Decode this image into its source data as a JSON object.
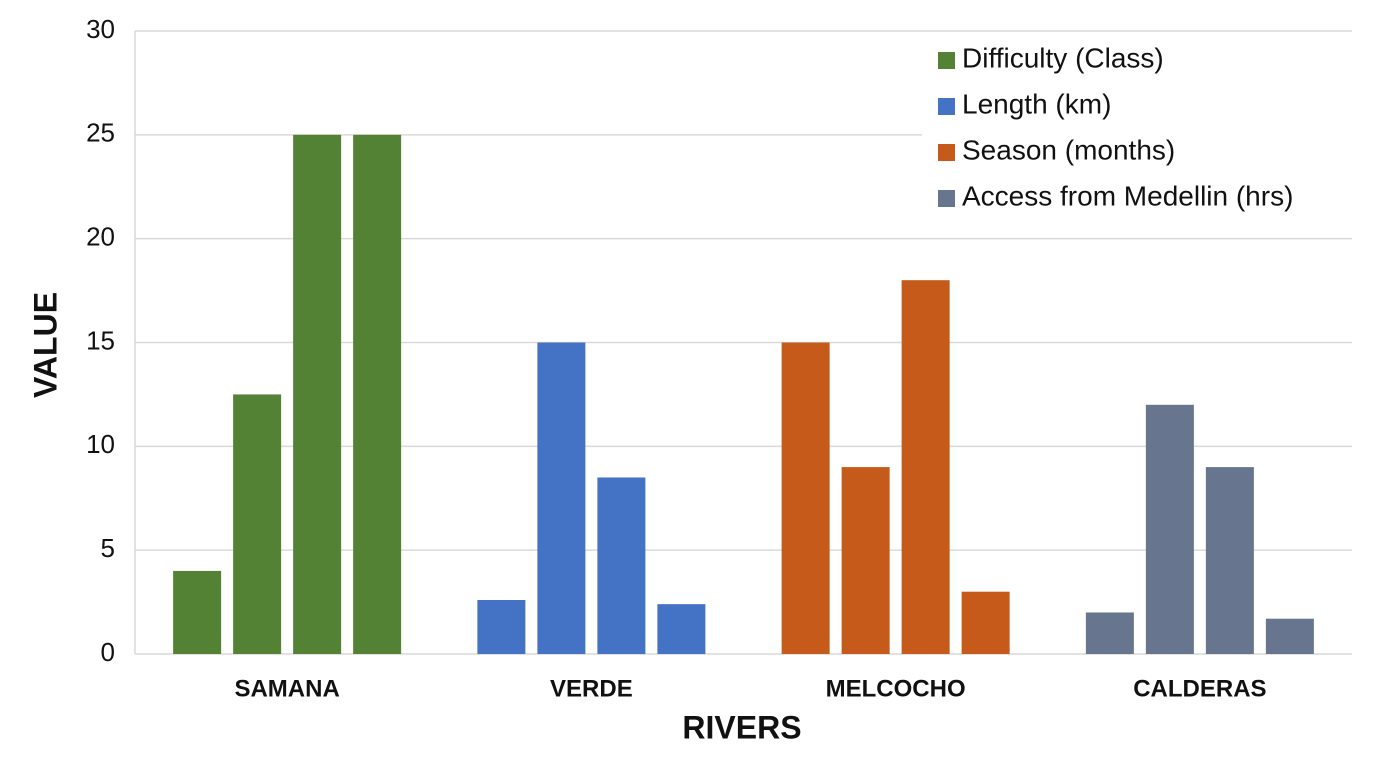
{
  "chart_data": {
    "type": "bar",
    "x_label": "RIVERS",
    "y_label": "VALUE",
    "categories": [
      "SAMANA",
      "VERDE",
      "MELCOCHO",
      "CALDERAS"
    ],
    "color_by": "category",
    "series": [
      {
        "name": "Difficulty (Class)",
        "color": "#548235",
        "values": [
          4,
          2.6,
          15,
          2
        ]
      },
      {
        "name": "Length (km)",
        "color": "#4472c4",
        "values": [
          12.5,
          15,
          9,
          12
        ]
      },
      {
        "name": "Season (months)",
        "color": "#c55a1a",
        "values": [
          25,
          8.5,
          18,
          9
        ]
      },
      {
        "name": "Access from Medellin (hrs)",
        "color": "#67768e",
        "values": [
          25,
          2.4,
          3,
          1.7
        ]
      }
    ],
    "ylim": [
      0,
      30
    ],
    "yticks": [
      0,
      5,
      10,
      15,
      20,
      25,
      30
    ],
    "grid": true,
    "legend": "upper right"
  }
}
